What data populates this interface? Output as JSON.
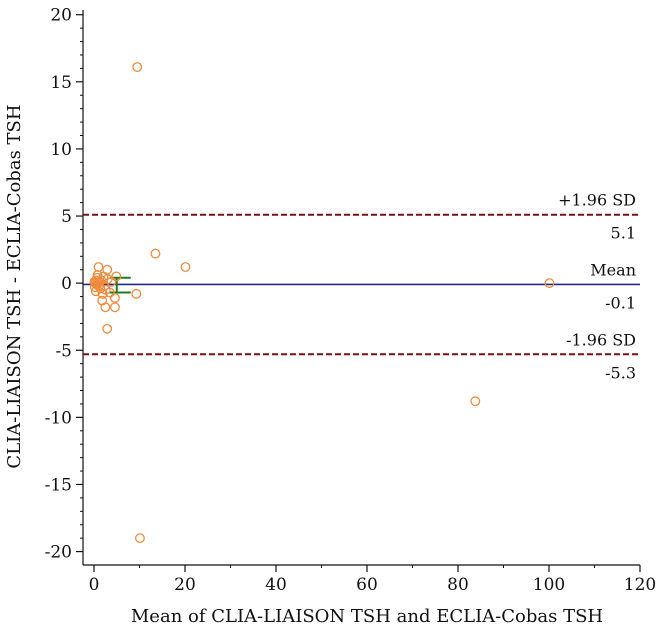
{
  "chart_data": {
    "type": "scatter",
    "title": "",
    "xlabel": "Mean of CLIA-LIAISON TSH and ECLIA-Cobas TSH",
    "ylabel": "CLIA-LIAISON TSH - ECLIA-Cobas TSH",
    "xlim": [
      0,
      120
    ],
    "ylim": [
      -21,
      20.5
    ],
    "xticks": [
      0,
      20,
      40,
      60,
      80,
      100,
      120
    ],
    "yticks": [
      -20,
      -15,
      -10,
      -5,
      0,
      5,
      10,
      15,
      20
    ],
    "grid": false,
    "colors": {
      "points": "#f08a3c",
      "mean_line": "#1f2a8c",
      "sd_line": "#7a1010",
      "ci_bar": "#1e7a1e",
      "axis": "#111111"
    },
    "reference_lines": [
      {
        "name": "upper_loa",
        "label": "+1.96 SD",
        "value_label": "5.1",
        "y": 5.1,
        "style": "dashed"
      },
      {
        "name": "mean",
        "label": "Mean",
        "value_label": "-0.1",
        "y": -0.1,
        "style": "solid"
      },
      {
        "name": "lower_loa",
        "label": "-1.96 SD",
        "value_label": "-5.3",
        "y": -5.3,
        "style": "dashed"
      }
    ],
    "ci_bar": {
      "x": 5,
      "y_low": -0.7,
      "y_high": 0.4
    },
    "points": [
      {
        "x": 9.5,
        "y": 16.1
      },
      {
        "x": 13.5,
        "y": 2.2
      },
      {
        "x": 20.1,
        "y": 1.2
      },
      {
        "x": 100.1,
        "y": 0.0
      },
      {
        "x": 83.8,
        "y": -8.8
      },
      {
        "x": 10.1,
        "y": -19.0
      },
      {
        "x": 9.3,
        "y": -0.8
      },
      {
        "x": 2.9,
        "y": -3.4
      },
      {
        "x": 2.5,
        "y": -1.8
      },
      {
        "x": 4.6,
        "y": -1.8
      },
      {
        "x": 1.8,
        "y": -1.3
      },
      {
        "x": 4.6,
        "y": -1.1
      },
      {
        "x": 3.5,
        "y": -0.7
      },
      {
        "x": 1.0,
        "y": 1.2
      },
      {
        "x": 2.9,
        "y": 1.0
      },
      {
        "x": 0.8,
        "y": 0.6
      },
      {
        "x": 2.1,
        "y": 0.5
      },
      {
        "x": 4.9,
        "y": 0.5
      },
      {
        "x": 0.5,
        "y": 0.2
      },
      {
        "x": 1.2,
        "y": 0.1
      },
      {
        "x": 0.3,
        "y": 0.0
      },
      {
        "x": 0.6,
        "y": -0.1
      },
      {
        "x": 0.9,
        "y": 0.0
      },
      {
        "x": 1.6,
        "y": 0.2
      },
      {
        "x": 0.2,
        "y": -0.3
      },
      {
        "x": 0.4,
        "y": -0.6
      },
      {
        "x": 1.4,
        "y": -0.4
      },
      {
        "x": 2.3,
        "y": -0.2
      },
      {
        "x": 3.0,
        "y": 0.3
      },
      {
        "x": 1.9,
        "y": -0.8
      },
      {
        "x": 0.7,
        "y": 0.4
      },
      {
        "x": 3.8,
        "y": 0.1
      },
      {
        "x": 2.6,
        "y": -0.5
      },
      {
        "x": 1.1,
        "y": -0.2
      },
      {
        "x": 0.1,
        "y": 0.1
      }
    ]
  }
}
